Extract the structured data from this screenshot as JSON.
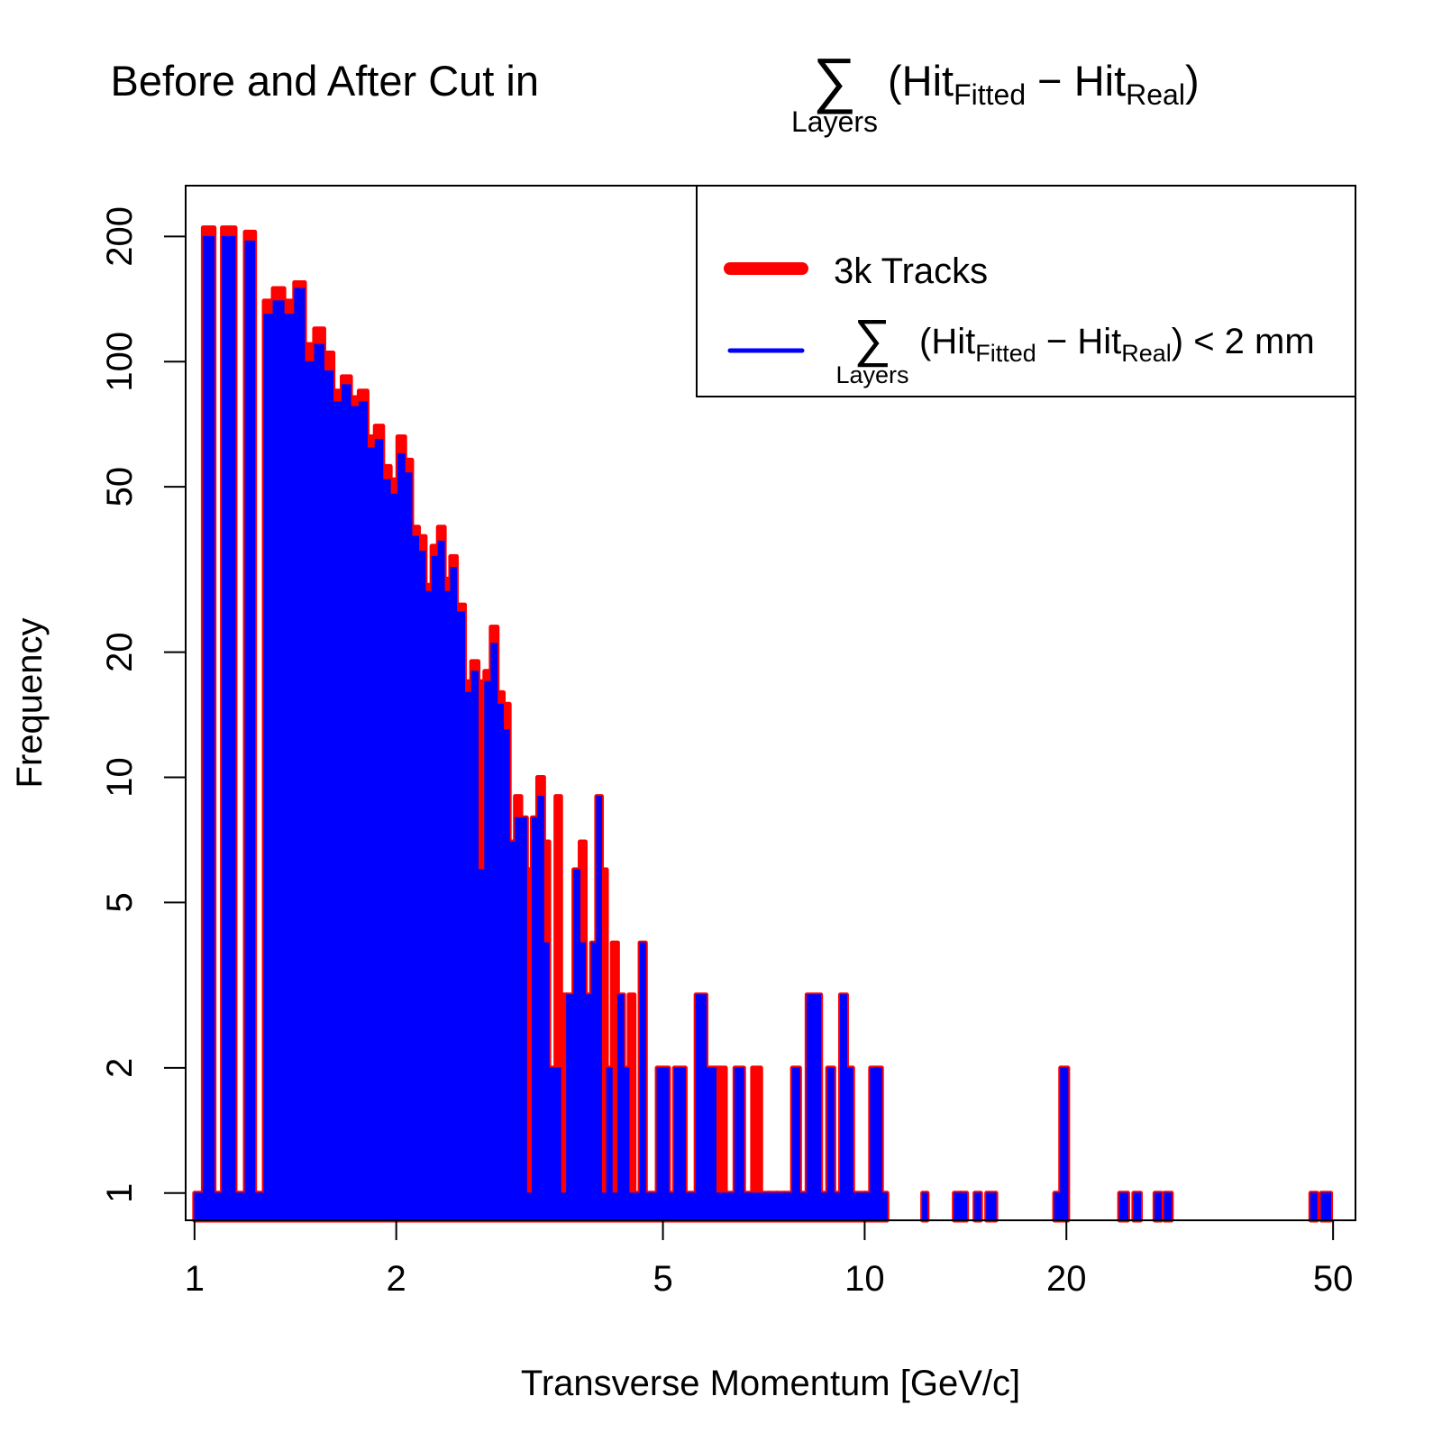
{
  "chart_data": {
    "type": "bar",
    "title": {
      "prefix": "Before and After Cut in",
      "sum_symbol": "∑",
      "sum_subscript": "Layers",
      "open": "(Hit",
      "sub1": "Fitted",
      "minus": " − Hit",
      "sub2": "Real",
      "close": ")"
    },
    "xlabel": "Transverse Momentum [GeV/c]",
    "ylabel": "Frequency",
    "x_scale": "log",
    "y_scale": "log",
    "xlim": [
      0.97,
      54
    ],
    "ylim": [
      0.86,
      265
    ],
    "x_ticks": [
      1,
      2,
      5,
      10,
      20,
      50
    ],
    "x_tick_labels": [
      "1",
      "2",
      "5",
      "10",
      "20",
      "50"
    ],
    "y_ticks": [
      1,
      2,
      5,
      10,
      20,
      50,
      100,
      200
    ],
    "y_tick_labels": [
      "1",
      "2",
      "5",
      "10",
      "20",
      "50",
      "100",
      "200"
    ],
    "legend": {
      "placement": "top-right",
      "entry1": "3k Tracks",
      "entry2": {
        "sum_symbol": "∑",
        "sum_subscript": "Layers",
        "open": "(Hit",
        "sub1": "Fitted",
        "minus": " − Hit",
        "sub2": "Real",
        "close": ") < 2 mm"
      }
    },
    "colors": {
      "before": "#ff0000",
      "after": "#0000ff"
    },
    "series": [
      {
        "name": "3k Tracks",
        "bins": [
          [
            1.0,
            1.03,
            1
          ],
          [
            1.03,
            1.07,
            210
          ],
          [
            1.07,
            1.1,
            1
          ],
          [
            1.1,
            1.15,
            210
          ],
          [
            1.15,
            1.19,
            1
          ],
          [
            1.19,
            1.23,
            205
          ],
          [
            1.23,
            1.27,
            1
          ],
          [
            1.27,
            1.31,
            140
          ],
          [
            1.31,
            1.36,
            150
          ],
          [
            1.36,
            1.41,
            140
          ],
          [
            1.41,
            1.46,
            155
          ],
          [
            1.46,
            1.51,
            110
          ],
          [
            1.51,
            1.56,
            120
          ],
          [
            1.56,
            1.61,
            105
          ],
          [
            1.61,
            1.66,
            85
          ],
          [
            1.66,
            1.71,
            92
          ],
          [
            1.71,
            1.76,
            82
          ],
          [
            1.76,
            1.81,
            85
          ],
          [
            1.81,
            1.86,
            66
          ],
          [
            1.86,
            1.91,
            70
          ],
          [
            1.91,
            1.96,
            56
          ],
          [
            1.96,
            2.01,
            52
          ],
          [
            2.01,
            2.06,
            66
          ],
          [
            2.06,
            2.11,
            58
          ],
          [
            2.11,
            2.16,
            40
          ],
          [
            2.16,
            2.21,
            38
          ],
          [
            2.21,
            2.26,
            29
          ],
          [
            2.26,
            2.31,
            36
          ],
          [
            2.31,
            2.36,
            40
          ],
          [
            2.36,
            2.41,
            30
          ],
          [
            2.41,
            2.46,
            34
          ],
          [
            2.46,
            2.53,
            26
          ],
          [
            2.53,
            2.59,
            17
          ],
          [
            2.59,
            2.65,
            19
          ],
          [
            2.65,
            2.71,
            17
          ],
          [
            2.71,
            2.77,
            18
          ],
          [
            2.77,
            2.83,
            23
          ],
          [
            2.83,
            2.89,
            16
          ],
          [
            2.89,
            2.95,
            15
          ],
          [
            2.95,
            3.01,
            7
          ],
          [
            3.01,
            3.07,
            9
          ],
          [
            3.07,
            3.13,
            8
          ],
          [
            3.13,
            3.19,
            6
          ],
          [
            3.19,
            3.25,
            8
          ],
          [
            3.25,
            3.32,
            10
          ],
          [
            3.32,
            3.38,
            7
          ],
          [
            3.38,
            3.46,
            2
          ],
          [
            3.46,
            3.52,
            9
          ],
          [
            3.52,
            3.59,
            3
          ],
          [
            3.59,
            3.68,
            3
          ],
          [
            3.68,
            3.76,
            6
          ],
          [
            3.76,
            3.83,
            7
          ],
          [
            3.83,
            3.91,
            3
          ],
          [
            3.91,
            3.98,
            4
          ],
          [
            3.98,
            4.05,
            9
          ],
          [
            4.05,
            4.12,
            6
          ],
          [
            4.12,
            4.2,
            2
          ],
          [
            4.2,
            4.28,
            4
          ],
          [
            4.28,
            4.37,
            3
          ],
          [
            4.37,
            4.45,
            2
          ],
          [
            4.45,
            4.53,
            3
          ],
          [
            4.53,
            4.62,
            1
          ],
          [
            4.62,
            4.71,
            4
          ],
          [
            4.71,
            4.8,
            1
          ],
          [
            4.8,
            4.9,
            1
          ],
          [
            4.9,
            5.0,
            2
          ],
          [
            5.0,
            5.1,
            2
          ],
          [
            5.1,
            5.2,
            1
          ],
          [
            5.2,
            5.4,
            2
          ],
          [
            5.4,
            5.6,
            1
          ],
          [
            5.6,
            5.8,
            3
          ],
          [
            5.8,
            6.0,
            2
          ],
          [
            6.0,
            6.2,
            2
          ],
          [
            6.2,
            6.4,
            1
          ],
          [
            6.4,
            6.6,
            2
          ],
          [
            6.6,
            6.8,
            1
          ],
          [
            6.8,
            7.0,
            2
          ],
          [
            7.0,
            7.2,
            1
          ],
          [
            7.2,
            7.4,
            1
          ],
          [
            7.4,
            7.6,
            1
          ],
          [
            7.6,
            7.8,
            1
          ],
          [
            7.8,
            8.0,
            2
          ],
          [
            8.0,
            8.2,
            1
          ],
          [
            8.2,
            8.6,
            3
          ],
          [
            8.6,
            8.8,
            1
          ],
          [
            8.8,
            9.0,
            2
          ],
          [
            9.0,
            9.2,
            1
          ],
          [
            9.2,
            9.4,
            3
          ],
          [
            9.4,
            9.6,
            2
          ],
          [
            9.6,
            10.0,
            1
          ],
          [
            10.0,
            10.2,
            1
          ],
          [
            10.2,
            10.6,
            2
          ],
          [
            10.6,
            10.8,
            1
          ],
          [
            12.2,
            12.4,
            1
          ],
          [
            13.6,
            13.9,
            1
          ],
          [
            13.9,
            14.2,
            1
          ],
          [
            14.6,
            14.9,
            1
          ],
          [
            15.2,
            15.7,
            1
          ],
          [
            19.2,
            19.6,
            1
          ],
          [
            19.6,
            20.1,
            2
          ],
          [
            24.0,
            24.7,
            1
          ],
          [
            25.2,
            25.8,
            1
          ],
          [
            27.1,
            27.7,
            1
          ],
          [
            28.0,
            28.7,
            1
          ],
          [
            46.3,
            47.3,
            1
          ],
          [
            48.0,
            49.6,
            1
          ]
        ]
      },
      {
        "bins": [
          [
            1.0,
            1.03,
            1
          ],
          [
            1.03,
            1.07,
            200
          ],
          [
            1.07,
            1.1,
            1
          ],
          [
            1.1,
            1.15,
            200
          ],
          [
            1.15,
            1.19,
            1
          ],
          [
            1.19,
            1.23,
            195
          ],
          [
            1.23,
            1.27,
            1
          ],
          [
            1.27,
            1.31,
            130
          ],
          [
            1.31,
            1.36,
            140
          ],
          [
            1.36,
            1.41,
            130
          ],
          [
            1.41,
            1.46,
            150
          ],
          [
            1.46,
            1.51,
            100
          ],
          [
            1.51,
            1.56,
            110
          ],
          [
            1.56,
            1.61,
            95
          ],
          [
            1.61,
            1.66,
            80
          ],
          [
            1.66,
            1.71,
            88
          ],
          [
            1.71,
            1.76,
            78
          ],
          [
            1.76,
            1.81,
            80
          ],
          [
            1.81,
            1.86,
            62
          ],
          [
            1.86,
            1.91,
            65
          ],
          [
            1.91,
            1.96,
            52
          ],
          [
            1.96,
            2.01,
            48
          ],
          [
            2.01,
            2.06,
            60
          ],
          [
            2.06,
            2.11,
            54
          ],
          [
            2.11,
            2.16,
            38
          ],
          [
            2.16,
            2.21,
            35
          ],
          [
            2.21,
            2.26,
            28
          ],
          [
            2.26,
            2.31,
            34
          ],
          [
            2.31,
            2.36,
            37
          ],
          [
            2.36,
            2.41,
            28
          ],
          [
            2.41,
            2.46,
            32
          ],
          [
            2.46,
            2.53,
            25
          ],
          [
            2.53,
            2.59,
            16
          ],
          [
            2.59,
            2.65,
            18
          ],
          [
            2.65,
            2.71,
            6
          ],
          [
            2.71,
            2.77,
            17
          ],
          [
            2.77,
            2.83,
            21
          ],
          [
            2.83,
            2.89,
            15
          ],
          [
            2.89,
            2.95,
            13
          ],
          [
            2.95,
            3.01,
            7
          ],
          [
            3.01,
            3.07,
            8
          ],
          [
            3.07,
            3.13,
            8
          ],
          [
            3.13,
            3.19,
            1
          ],
          [
            3.19,
            3.25,
            8
          ],
          [
            3.25,
            3.32,
            9
          ],
          [
            3.32,
            3.38,
            4
          ],
          [
            3.38,
            3.46,
            2
          ],
          [
            3.46,
            3.52,
            2
          ],
          [
            3.52,
            3.59,
            1
          ],
          [
            3.59,
            3.68,
            3
          ],
          [
            3.68,
            3.76,
            6
          ],
          [
            3.76,
            3.83,
            4
          ],
          [
            3.83,
            3.91,
            3
          ],
          [
            3.91,
            3.98,
            4
          ],
          [
            3.98,
            4.05,
            9
          ],
          [
            4.05,
            4.12,
            1
          ],
          [
            4.12,
            4.2,
            2
          ],
          [
            4.2,
            4.28,
            1
          ],
          [
            4.28,
            4.37,
            3
          ],
          [
            4.37,
            4.45,
            2
          ],
          [
            4.45,
            4.53,
            1
          ],
          [
            4.53,
            4.62,
            1
          ],
          [
            4.62,
            4.71,
            4
          ],
          [
            4.71,
            4.8,
            1
          ],
          [
            4.8,
            4.9,
            1
          ],
          [
            4.9,
            5.0,
            2
          ],
          [
            5.0,
            5.1,
            2
          ],
          [
            5.1,
            5.2,
            1
          ],
          [
            5.2,
            5.4,
            2
          ],
          [
            5.4,
            5.6,
            1
          ],
          [
            5.6,
            5.8,
            3
          ],
          [
            5.8,
            6.0,
            2
          ],
          [
            6.0,
            6.2,
            1
          ],
          [
            6.2,
            6.4,
            1
          ],
          [
            6.4,
            6.6,
            2
          ],
          [
            6.6,
            6.8,
            1
          ],
          [
            6.8,
            7.0,
            1
          ],
          [
            7.0,
            7.2,
            1
          ],
          [
            7.2,
            7.4,
            1
          ],
          [
            7.4,
            7.6,
            1
          ],
          [
            7.6,
            7.8,
            1
          ],
          [
            7.8,
            8.0,
            2
          ],
          [
            8.0,
            8.2,
            1
          ],
          [
            8.2,
            8.6,
            3
          ],
          [
            8.6,
            8.8,
            1
          ],
          [
            8.8,
            9.0,
            2
          ],
          [
            9.0,
            9.2,
            1
          ],
          [
            9.2,
            9.4,
            3
          ],
          [
            9.4,
            9.6,
            2
          ],
          [
            9.6,
            10.0,
            1
          ],
          [
            10.0,
            10.2,
            1
          ],
          [
            10.2,
            10.6,
            2
          ],
          [
            10.6,
            10.8,
            1
          ],
          [
            12.2,
            12.4,
            1
          ],
          [
            13.6,
            13.9,
            1
          ],
          [
            13.9,
            14.2,
            1
          ],
          [
            14.6,
            14.9,
            1
          ],
          [
            15.2,
            15.7,
            1
          ],
          [
            19.2,
            19.6,
            1
          ],
          [
            19.6,
            20.1,
            2
          ],
          [
            24.0,
            24.7,
            1
          ],
          [
            25.2,
            25.8,
            1
          ],
          [
            27.1,
            27.7,
            1
          ],
          [
            28.0,
            28.7,
            1
          ],
          [
            46.3,
            47.3,
            1
          ],
          [
            48.0,
            49.6,
            1
          ]
        ]
      }
    ]
  }
}
